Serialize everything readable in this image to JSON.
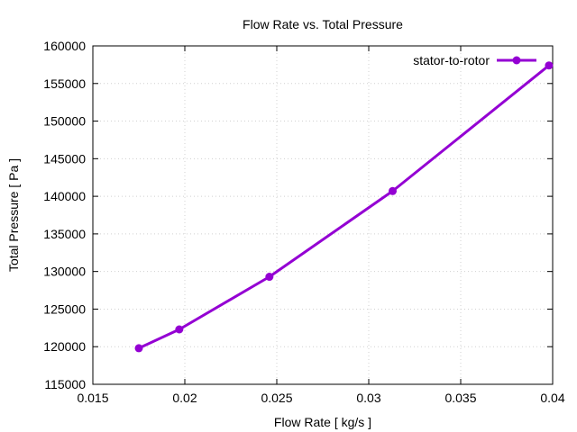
{
  "chart_data": {
    "type": "line",
    "title": "Flow Rate vs. Total Pressure",
    "xlabel": "Flow Rate [ kg/s ]",
    "ylabel": "Total Pressure [ Pa ]",
    "xlim": [
      0.015,
      0.04
    ],
    "ylim": [
      115000,
      160000
    ],
    "xticks": [
      0.015,
      0.02,
      0.025,
      0.03,
      0.035,
      0.04
    ],
    "xtick_labels": [
      "0.015",
      "0.02",
      "0.025",
      "0.03",
      "0.035",
      "0.04"
    ],
    "yticks": [
      115000,
      120000,
      125000,
      130000,
      135000,
      140000,
      145000,
      150000,
      155000,
      160000
    ],
    "ytick_labels": [
      "115000",
      "120000",
      "125000",
      "130000",
      "135000",
      "140000",
      "145000",
      "150000",
      "155000",
      "160000"
    ],
    "grid": true,
    "legend_position": "top-right",
    "series": [
      {
        "name": "stator-to-rotor",
        "color": "#9400d3",
        "marker": "circle",
        "x": [
          0.0175,
          0.0197,
          0.0246,
          0.0313,
          0.0398
        ],
        "y": [
          119800,
          122300,
          129300,
          140700,
          157400
        ]
      }
    ]
  }
}
